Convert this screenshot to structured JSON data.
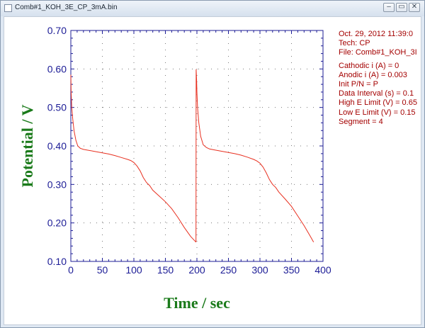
{
  "window": {
    "title": "Comb#1_KOH_3E_CP_3mA.bin",
    "icons": [
      "minimize-icon",
      "restore-icon",
      "close-icon"
    ],
    "minimize_glyph": "–",
    "restore_glyph": "▭",
    "close_glyph": "✕"
  },
  "info_panel": {
    "header": [
      "Oct. 29, 2012   11:39:0",
      "Tech: CP",
      "File: Comb#1_KOH_3I"
    ],
    "params": [
      "Cathodic i (A) = 0",
      "Anodic i (A) = 0.003",
      "Init P/N = P",
      "Data Interval (s) = 0.1",
      "High E Limit (V) = 0.65",
      "Low E Limit (V) = 0.15",
      "Segment = 4"
    ]
  },
  "colors": {
    "axis": "#1c1c96",
    "tick_label": "#1c1c96",
    "axis_title": "#1a7a1a",
    "trace": "#e83020",
    "info_text": "#a40000"
  },
  "chart_data": {
    "type": "line",
    "xlabel": "Time / sec",
    "ylabel": "Potential / V",
    "xlim": [
      0,
      400
    ],
    "ylim": [
      0.1,
      0.7
    ],
    "x_ticks": [
      "0",
      "50",
      "100",
      "150",
      "200",
      "250",
      "300",
      "350",
      "400"
    ],
    "y_ticks": [
      "0.10",
      "0.20",
      "0.30",
      "0.40",
      "0.50",
      "0.60",
      "0.70"
    ],
    "grid": "dotted",
    "series": [
      {
        "x": [
          0,
          0.5,
          1.5,
          3,
          5,
          8,
          11,
          15,
          20,
          30,
          40,
          50,
          60,
          70,
          80,
          90,
          95,
          100,
          105,
          110,
          115,
          120,
          125,
          130,
          140,
          150,
          160,
          170,
          180,
          190,
          198.5
        ],
        "y": [
          0.585,
          0.54,
          0.5,
          0.47,
          0.44,
          0.415,
          0.4,
          0.394,
          0.391,
          0.388,
          0.385,
          0.382,
          0.379,
          0.375,
          0.37,
          0.365,
          0.362,
          0.357,
          0.348,
          0.335,
          0.318,
          0.305,
          0.297,
          0.285,
          0.27,
          0.255,
          0.237,
          0.214,
          0.188,
          0.165,
          0.15
        ]
      },
      {
        "x": [
          198.5,
          198.8,
          199.5,
          200,
          201,
          203,
          206,
          210,
          215,
          220,
          230,
          240,
          250,
          260,
          270,
          280,
          290,
          295,
          300,
          305,
          310,
          315,
          320,
          325,
          330,
          340,
          350,
          360,
          370,
          380,
          385
        ],
        "y": [
          0.15,
          0.599,
          0.57,
          0.54,
          0.5,
          0.46,
          0.425,
          0.403,
          0.396,
          0.392,
          0.389,
          0.386,
          0.383,
          0.38,
          0.376,
          0.371,
          0.365,
          0.361,
          0.355,
          0.345,
          0.33,
          0.313,
          0.3,
          0.292,
          0.28,
          0.262,
          0.243,
          0.218,
          0.193,
          0.165,
          0.15
        ]
      }
    ]
  }
}
